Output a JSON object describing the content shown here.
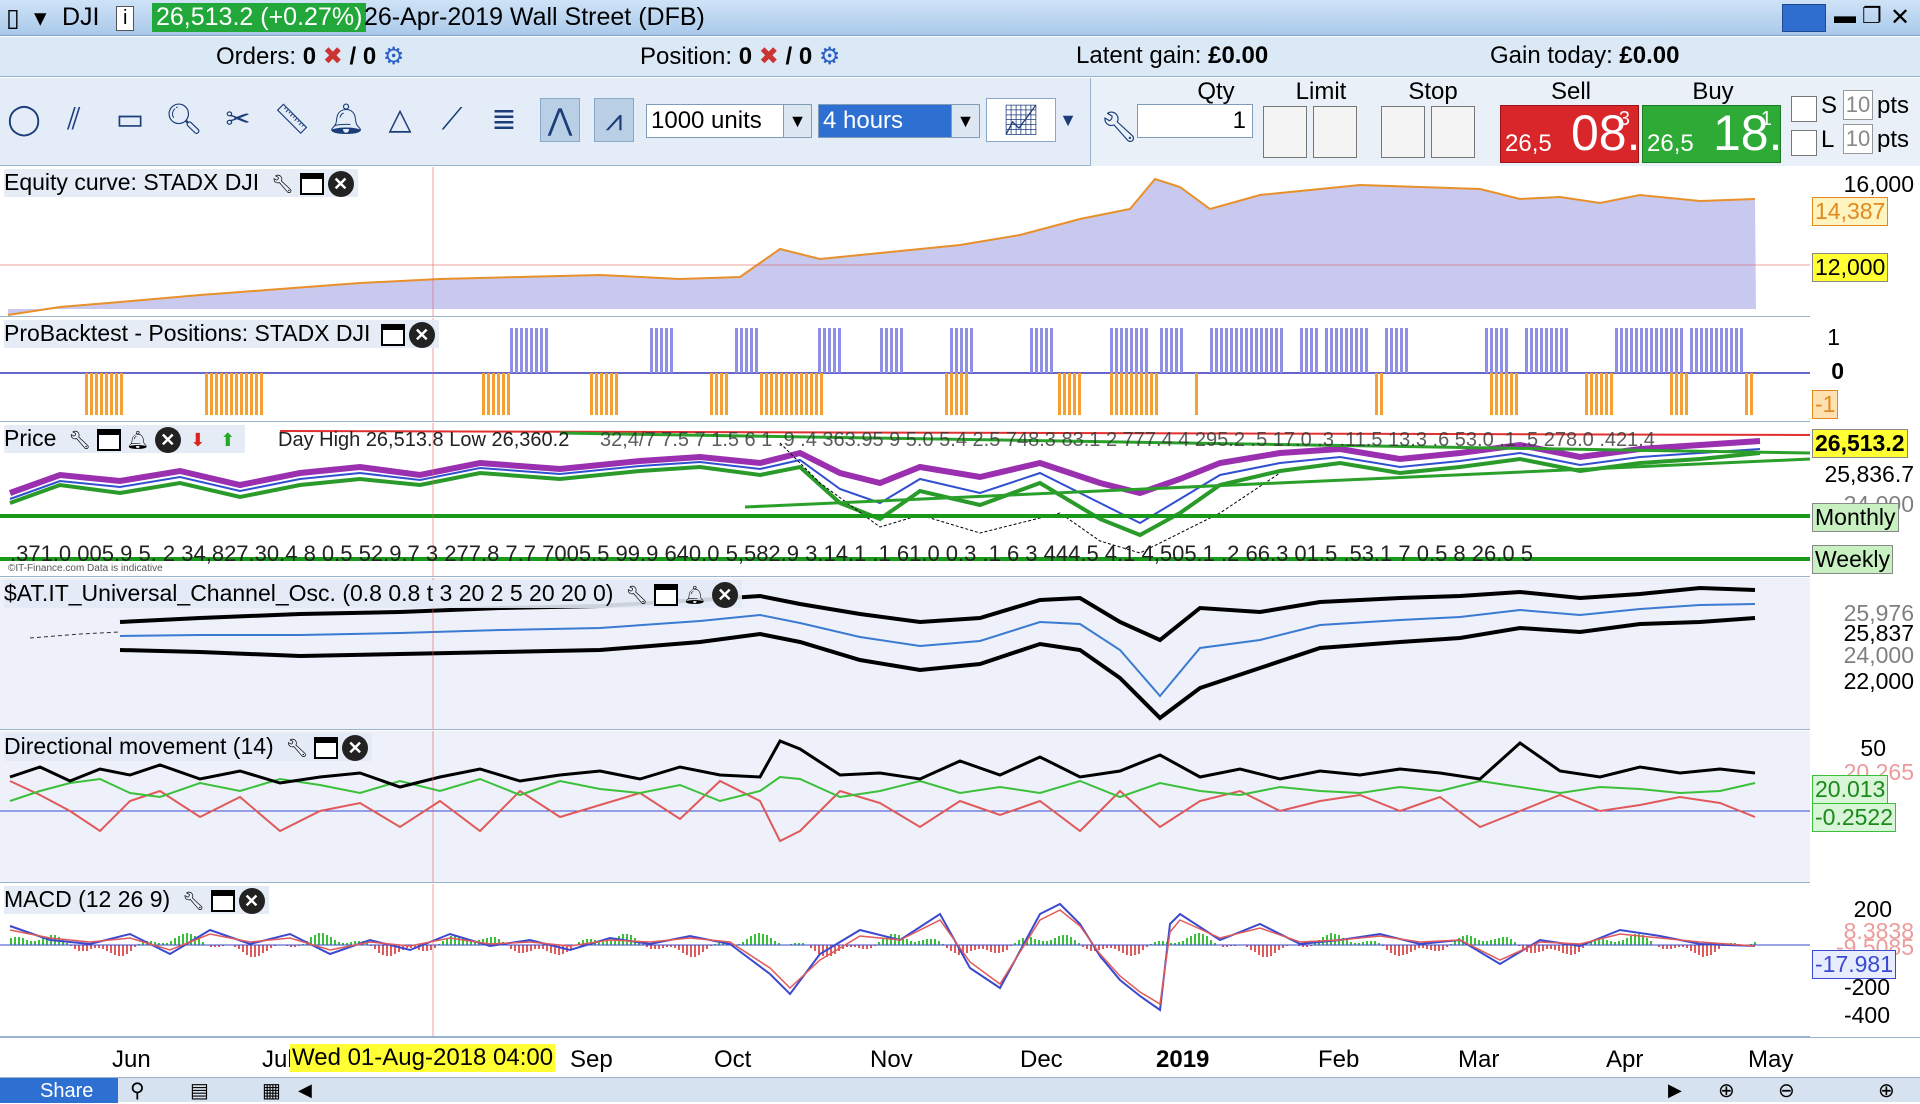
{
  "titlebar": {
    "symbol": "DJI",
    "price_change": "26,513.2 (+0.27%)",
    "date_market": "26-Apr-2019 Wall Street (DFB)"
  },
  "statusbar": {
    "orders_label": "Orders:",
    "orders_value": "0",
    "orders_sep": "/ 0",
    "position_label": "Position:",
    "position_value": "0",
    "position_sep": "/ 0",
    "latent_label": "Latent gain:",
    "latent_value": "£0.00",
    "today_label": "Gain today:",
    "today_value": "£0.00"
  },
  "toolbar": {
    "units_value": "1000 units",
    "timeframe_value": "4 hours"
  },
  "order_panel": {
    "qty_label": "Qty",
    "qty_value": "1",
    "limit_label": "Limit",
    "stop_label": "Stop",
    "sell_label": "Sell",
    "buy_label": "Buy",
    "sell_prefix": "26,5",
    "sell_big": "08.",
    "sell_sup": "3",
    "buy_prefix": "26,5",
    "buy_big": "18.",
    "buy_sup": "1",
    "s_label": "S",
    "s_pts_value": "10",
    "l_label": "L",
    "l_pts_value": "10",
    "pts_label": "pts"
  },
  "panels": {
    "equity": {
      "title": "Equity curve: STADX DJI",
      "axis": [
        "16,000",
        "14,387",
        "12,000"
      ]
    },
    "positions": {
      "title": "ProBacktest - Positions: STADX DJI",
      "axis": [
        "1",
        "0",
        "-1"
      ]
    },
    "price": {
      "title": "Price",
      "overlay_text": "Day High 26,513.8 Low 26,360.2",
      "axis": [
        "26,513.2",
        "25,836.7",
        "24,000"
      ],
      "tag_monthly": "Monthly",
      "tag_weekly": "Weekly",
      "values_row": ".371.0 005.9 5. 2 34,827.30.4 8 0.5   52.9.7 3 277.8 7.7 7005.5 99.9 640.0 5,582.9 3.14.1   .1 61.0 0.3 .1 6 3  444.5 4.1 4,505.1 .2  66.3  01.5  .53.1 7 0.5 8  26.0 5",
      "top_row": "32,4/7 7.5 7 1.5 6 1 .9 .4 363.95 9 5.0 5.4 2.5 748.3  83.1 2 777.4 4 295.2 .5 17.0 .3 .11.5 13.3 .6 53.0 .1 .5 278.0  .421.4",
      "watermark": "©IT-Finance.com Data is indicative"
    },
    "osc": {
      "title": "$AT.IT_Universal_Channel_Osc. (0.8 0.8 t 3 20 2 5 20 20 0)",
      "axis": [
        "25,976",
        "25,837",
        "24,000",
        "22,000"
      ]
    },
    "dm": {
      "title": "Directional movement (14)",
      "axis": [
        "50",
        "20.265",
        "20.013",
        "-0.2522"
      ]
    },
    "macd": {
      "title": "MACD (12 26 9)",
      "axis": [
        "200",
        "8.3838",
        "-9.5085",
        "-17.981",
        "-200",
        "-400"
      ]
    }
  },
  "time_axis": {
    "months": [
      "Jun",
      "Jul",
      "Sep",
      "Oct",
      "Nov",
      "Dec",
      "2019",
      "Feb",
      "Mar",
      "Apr",
      "May"
    ],
    "cursor_label": "Wed 01-Aug-2018 04:00"
  },
  "bottom_bar": {
    "share_label": "Share"
  },
  "colors": {
    "sell": "#d9262a",
    "buy": "#2eaa37",
    "equity_fill": "#c9c9ef",
    "equity_line": "#e8902a",
    "positions_long": "#8f8fe6",
    "positions_short": "#f5a030",
    "tag_yellow": "#ffff33",
    "tag_green": "#c8f0c0"
  }
}
